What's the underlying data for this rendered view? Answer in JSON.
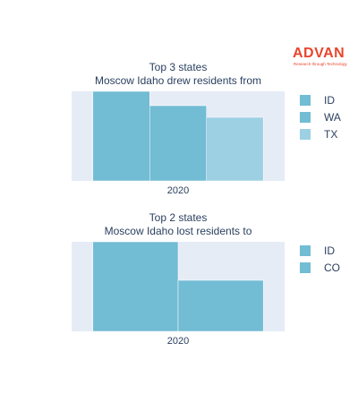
{
  "brand": {
    "name": "ADVAN",
    "tagline": "Research through Technology",
    "color": "#e8452c"
  },
  "colors": {
    "plot_bg": "#e5ecf6",
    "bar_dark": "#72bcd4",
    "bar_light": "#9dd0e3"
  },
  "chart_data": [
    {
      "type": "bar",
      "title": [
        "Top 3 states",
        "Moscow Idaho drew residents from"
      ],
      "categories": [
        "2020"
      ],
      "series": [
        {
          "name": "ID",
          "values": [
            100
          ],
          "color": "#72bcd4"
        },
        {
          "name": "WA",
          "values": [
            84
          ],
          "color": "#72bcd4"
        },
        {
          "name": "TX",
          "values": [
            71
          ],
          "color": "#9dd0e3"
        }
      ],
      "ylim": [
        0,
        100
      ],
      "grid": false,
      "legend": "right"
    },
    {
      "type": "bar",
      "title": [
        "Top 2 states",
        "Moscow Idaho lost residents to"
      ],
      "categories": [
        "2020"
      ],
      "series": [
        {
          "name": "ID",
          "values": [
            100
          ],
          "color": "#72bcd4"
        },
        {
          "name": "CO",
          "values": [
            57
          ],
          "color": "#72bcd4"
        }
      ],
      "ylim": [
        0,
        100
      ],
      "grid": false,
      "legend": "right"
    }
  ]
}
